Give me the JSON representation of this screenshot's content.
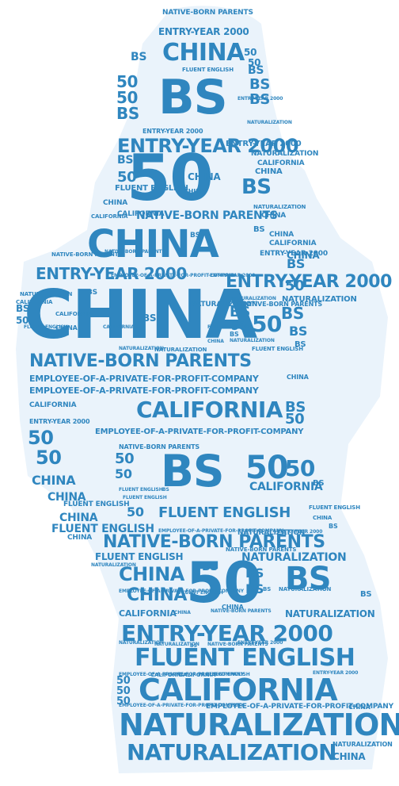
{
  "palette": {
    "background": "#ffffff",
    "silhouette": "#eaf3fb",
    "text": "#2f86bf",
    "text_light": "#4a9acb"
  },
  "words": [
    "NATIVE-BORN PARENTS",
    "ENTRY-YEAR 2000",
    "CHINA",
    "BS",
    "50",
    "FLUENT ENGLISH",
    "NATURALIZATION",
    "CALIFORNIA",
    "EMPLOYEE-OF-A-PRIVATE-FOR-PROFIT-COMPANY"
  ]
}
